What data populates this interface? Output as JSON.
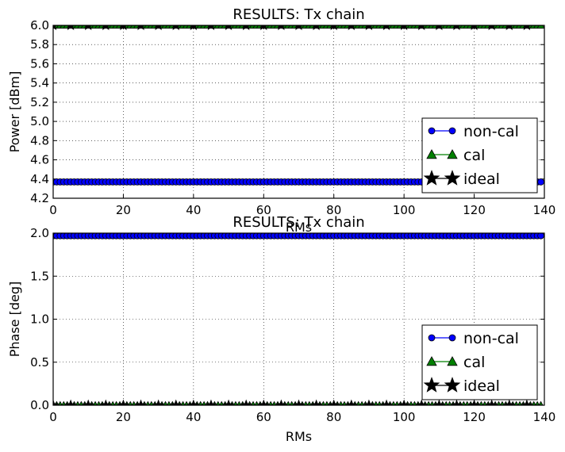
{
  "chart_data": [
    {
      "type": "line",
      "title": "RESULTS: Tx chain",
      "xlabel": "RMs",
      "ylabel": "Power [dBm]",
      "xlim": [
        0,
        140
      ],
      "ylim": [
        4.2,
        6.0
      ],
      "xticks": [
        "0",
        "20",
        "40",
        "60",
        "80",
        "100",
        "120",
        "140"
      ],
      "yticks": [
        "4.2",
        "4.4",
        "4.6",
        "4.8",
        "5.0",
        "5.2",
        "5.4",
        "5.6",
        "5.8",
        "6.0"
      ],
      "grid": true,
      "legend_position": "lower-right",
      "x_range": [
        0,
        139
      ],
      "series": [
        {
          "name": "non-cal",
          "color": "#0000ff",
          "marker": "circle",
          "constant_value": 4.37
        },
        {
          "name": "cal",
          "color": "#008000",
          "marker": "triangle",
          "constant_value": 6.0
        },
        {
          "name": "ideal",
          "color": "#000000",
          "marker": "star",
          "constant_value": 6.0,
          "every": 5
        }
      ]
    },
    {
      "type": "line",
      "title": "RESULTS: Tx chain",
      "xlabel": "RMs",
      "ylabel": "Phase [deg]",
      "xlim": [
        0,
        140
      ],
      "ylim": [
        0.0,
        2.0
      ],
      "xticks": [
        "0",
        "20",
        "40",
        "60",
        "80",
        "100",
        "120",
        "140"
      ],
      "yticks": [
        "0.0",
        "0.5",
        "1.0",
        "1.5",
        "2.0"
      ],
      "grid": true,
      "legend_position": "lower-right",
      "x_range": [
        0,
        139
      ],
      "series": [
        {
          "name": "non-cal",
          "color": "#0000ff",
          "marker": "circle",
          "constant_value": 1.97
        },
        {
          "name": "cal",
          "color": "#008000",
          "marker": "triangle",
          "constant_value": 0.0
        },
        {
          "name": "ideal",
          "color": "#000000",
          "marker": "star",
          "constant_value": 0.0,
          "every": 5
        }
      ]
    }
  ]
}
